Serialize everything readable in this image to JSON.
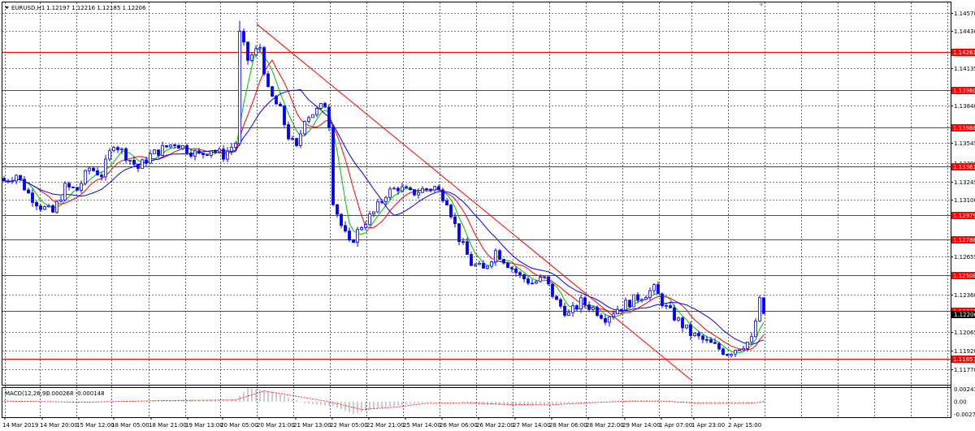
{
  "header": {
    "title": "EURUSD,H1",
    "ohlc": "1.12197 1.12216 1.12185 1.12206"
  },
  "macd": {
    "title": "MACD(12,26,9)",
    "values": "0.000268 -0.000148",
    "ticks": [
      "0.002438",
      "0.00",
      "-0.00277"
    ]
  },
  "colors": {
    "candle": "#0000ff",
    "level": "#ff0000",
    "ma_fast": "#00c000",
    "ma_mid": "#ff0000",
    "ma_slow": "#0000ff",
    "grid": "#000000",
    "current_price": "#000000"
  },
  "icons": {
    "symbol_arrow": "triangle-down-icon",
    "scroll_marker": "triangle-down-icon"
  },
  "chart_data": {
    "type": "candlestick",
    "symbol": "EURUSD",
    "timeframe": "H1",
    "ylim": [
      1.1165,
      1.1465
    ],
    "y_ticks": [
      "1.14570",
      "1.14430",
      "1.14135",
      "1.13840",
      "1.13545",
      "1.13390",
      "1.13245",
      "1.13100",
      "1.12655",
      "1.12360",
      "1.12065",
      "1.11920",
      "1.11770"
    ],
    "x_ticks": [
      "14 Mar 2019",
      "14 Mar 20:00",
      "15 Mar 12:00",
      "18 Mar 05:00",
      "18 Mar 21:00",
      "19 Mar 13:00",
      "20 Mar 05:00",
      "20 Mar 21:00",
      "21 Mar 13:00",
      "22 Mar 05:00",
      "22 Mar 21:00",
      "25 Mar 14:00",
      "26 Mar 06:00",
      "26 Mar 22:00",
      "27 Mar 14:00",
      "28 Mar 06:00",
      "28 Mar 22:00",
      "29 Mar 14:00",
      "1 Apr 07:00",
      "1 Apr 23:00",
      "2 Apr 15:00"
    ],
    "levels": [
      "1.14261",
      "1.13960",
      "1.13666",
      "1.13361",
      "1.12979",
      "1.12788",
      "1.12508",
      "1.12231",
      "1.11857"
    ],
    "current_price": "1.12206",
    "trendline": {
      "from_price": 1.1448,
      "to_price": 1.1168
    },
    "close_waypoints": [
      [
        0,
        1.1325
      ],
      [
        3,
        1.133
      ],
      [
        6,
        1.1315
      ],
      [
        9,
        1.1305
      ],
      [
        12,
        1.13
      ],
      [
        15,
        1.132
      ],
      [
        18,
        1.1318
      ],
      [
        21,
        1.1335
      ],
      [
        24,
        1.133
      ],
      [
        27,
        1.1355
      ],
      [
        30,
        1.1345
      ],
      [
        33,
        1.1335
      ],
      [
        36,
        1.1345
      ],
      [
        39,
        1.135
      ],
      [
        42,
        1.1355
      ],
      [
        45,
        1.135
      ],
      [
        48,
        1.1345
      ],
      [
        51,
        1.135
      ],
      [
        54,
        1.1345
      ],
      [
        57,
        1.1355
      ],
      [
        58,
        1.144
      ],
      [
        60,
        1.142
      ],
      [
        63,
        1.143
      ],
      [
        65,
        1.1395
      ],
      [
        68,
        1.138
      ],
      [
        70,
        1.136
      ],
      [
        72,
        1.135
      ],
      [
        74,
        1.1375
      ],
      [
        77,
        1.138
      ],
      [
        79,
        1.1385
      ],
      [
        80,
        1.137
      ],
      [
        81,
        1.131
      ],
      [
        83,
        1.129
      ],
      [
        85,
        1.1275
      ],
      [
        88,
        1.129
      ],
      [
        91,
        1.13
      ],
      [
        94,
        1.1315
      ],
      [
        97,
        1.132
      ],
      [
        100,
        1.1315
      ],
      [
        103,
        1.1318
      ],
      [
        106,
        1.132
      ],
      [
        109,
        1.131
      ],
      [
        112,
        1.128
      ],
      [
        115,
        1.126
      ],
      [
        118,
        1.1255
      ],
      [
        121,
        1.127
      ],
      [
        124,
        1.126
      ],
      [
        127,
        1.125
      ],
      [
        130,
        1.1245
      ],
      [
        133,
        1.1248
      ],
      [
        136,
        1.123
      ],
      [
        139,
        1.122
      ],
      [
        142,
        1.123
      ],
      [
        145,
        1.1225
      ],
      [
        148,
        1.1218
      ],
      [
        151,
        1.1225
      ],
      [
        154,
        1.123
      ],
      [
        157,
        1.1235
      ],
      [
        160,
        1.124
      ],
      [
        163,
        1.1225
      ],
      [
        166,
        1.1215
      ],
      [
        169,
        1.1205
      ],
      [
        172,
        1.12
      ],
      [
        175,
        1.1195
      ],
      [
        178,
        1.119
      ],
      [
        181,
        1.1195
      ],
      [
        184,
        1.12
      ],
      [
        186,
        1.123
      ],
      [
        187,
        1.1221
      ]
    ],
    "macd_hist_waypoints": [
      [
        0,
        0.0002
      ],
      [
        20,
        -0.0002
      ],
      [
        40,
        0.0003
      ],
      [
        57,
        0.0004
      ],
      [
        60,
        0.0024
      ],
      [
        66,
        0.0018
      ],
      [
        74,
        -0.0003
      ],
      [
        81,
        -0.0008
      ],
      [
        86,
        -0.0022
      ],
      [
        92,
        -0.0012
      ],
      [
        100,
        -0.0004
      ],
      [
        110,
        0.0001
      ],
      [
        118,
        -0.0006
      ],
      [
        128,
        -0.0007
      ],
      [
        140,
        -0.0003
      ],
      [
        150,
        0.0001
      ],
      [
        158,
        0.0002
      ],
      [
        166,
        -0.0002
      ],
      [
        176,
        -0.0004
      ],
      [
        184,
        -0.0003
      ],
      [
        187,
        0.0003
      ]
    ],
    "macd_signal_waypoints": [
      [
        0,
        0.0001
      ],
      [
        20,
        -0.0001
      ],
      [
        40,
        0.0002
      ],
      [
        57,
        0.0003
      ],
      [
        64,
        0.0019
      ],
      [
        70,
        0.0012
      ],
      [
        80,
        0.0
      ],
      [
        88,
        -0.0014
      ],
      [
        96,
        -0.001
      ],
      [
        104,
        -0.0003
      ],
      [
        114,
        -0.0002
      ],
      [
        124,
        -0.0005
      ],
      [
        134,
        -0.0006
      ],
      [
        144,
        -0.0002
      ],
      [
        154,
        0.0001
      ],
      [
        162,
        0.0001
      ],
      [
        172,
        -0.0003
      ],
      [
        182,
        -0.0003
      ],
      [
        187,
        -0.0001
      ]
    ]
  }
}
